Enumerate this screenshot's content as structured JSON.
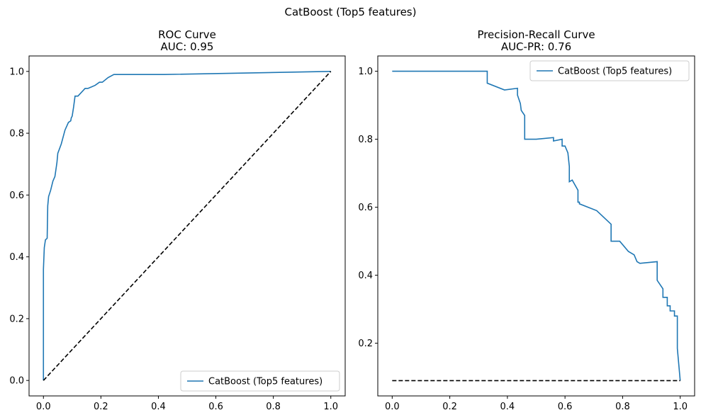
{
  "figure": {
    "suptitle": "CatBoost (Top5 features)"
  },
  "colors": {
    "series": "#1f77b4",
    "baseline": "#000000"
  },
  "chart_data": [
    {
      "type": "line",
      "title": "ROC Curve",
      "subtitle": "AUC: 0.95",
      "xlabel": "",
      "ylabel": "",
      "xlim": [
        -0.05,
        1.05
      ],
      "ylim": [
        -0.05,
        1.05
      ],
      "xticks": [
        0.0,
        0.2,
        0.4,
        0.6,
        0.8,
        1.0
      ],
      "xtick_labels": [
        "0.0",
        "0.2",
        "0.4",
        "0.6",
        "0.8",
        "1.0"
      ],
      "yticks": [
        0.0,
        0.2,
        0.4,
        0.6,
        0.8,
        1.0
      ],
      "ytick_labels": [
        "0.0",
        "0.2",
        "0.4",
        "0.6",
        "0.8",
        "1.0"
      ],
      "grid": false,
      "legend": {
        "position": "lower-right",
        "entries": [
          "CatBoost (Top5 features)"
        ]
      },
      "series": [
        {
          "name": "CatBoost (Top5 features)",
          "style": "solid",
          "x": [
            0.0,
            0.0,
            0.0,
            0.0,
            0.0,
            0.003,
            0.003,
            0.007,
            0.007,
            0.013,
            0.013,
            0.015,
            0.015,
            0.018,
            0.018,
            0.025,
            0.025,
            0.033,
            0.033,
            0.04,
            0.04,
            0.047,
            0.047,
            0.05,
            0.05,
            0.062,
            0.062,
            0.075,
            0.075,
            0.087,
            0.087,
            0.095,
            0.097,
            0.1,
            0.105,
            0.105,
            0.11,
            0.11,
            0.12,
            0.12,
            0.145,
            0.155,
            0.155,
            0.18,
            0.18,
            0.195,
            0.195,
            0.205,
            0.205,
            0.225,
            0.225,
            0.245,
            0.245,
            0.42,
            1.0
          ],
          "y": [
            0.0,
            0.33,
            0.33,
            0.36,
            0.36,
            0.43,
            0.43,
            0.455,
            0.455,
            0.46,
            0.46,
            0.565,
            0.565,
            0.595,
            0.595,
            0.615,
            0.615,
            0.645,
            0.645,
            0.66,
            0.66,
            0.705,
            0.705,
            0.735,
            0.735,
            0.765,
            0.765,
            0.81,
            0.81,
            0.835,
            0.835,
            0.84,
            0.85,
            0.855,
            0.885,
            0.885,
            0.92,
            0.92,
            0.92,
            0.92,
            0.945,
            0.945,
            0.945,
            0.955,
            0.955,
            0.965,
            0.965,
            0.965,
            0.965,
            0.98,
            0.98,
            0.99,
            0.99,
            0.99,
            1.0
          ]
        },
        {
          "name": "",
          "style": "dashed",
          "x": [
            0.0,
            1.0
          ],
          "y": [
            0.0,
            1.0
          ]
        }
      ]
    },
    {
      "type": "line",
      "title": "Precision-Recall Curve",
      "subtitle": "AUC-PR: 0.76",
      "xlabel": "",
      "ylabel": "",
      "xlim": [
        -0.05,
        1.05
      ],
      "ylim": [
        0.045,
        1.045
      ],
      "xticks": [
        0.0,
        0.2,
        0.4,
        0.6,
        0.8,
        1.0
      ],
      "xtick_labels": [
        "0.0",
        "0.2",
        "0.4",
        "0.6",
        "0.8",
        "1.0"
      ],
      "yticks": [
        0.2,
        0.4,
        0.6,
        0.8,
        1.0
      ],
      "ytick_labels": [
        "0.2",
        "0.4",
        "0.6",
        "0.8",
        "1.0"
      ],
      "grid": false,
      "legend": {
        "position": "upper-right",
        "entries": [
          "CatBoost (Top5 features)"
        ]
      },
      "series": [
        {
          "name": "CatBoost (Top5 features)",
          "style": "solid",
          "x": [
            0.0,
            0.33,
            0.33,
            0.39,
            0.435,
            0.435,
            0.445,
            0.448,
            0.448,
            0.46,
            0.46,
            0.5,
            0.56,
            0.56,
            0.59,
            0.59,
            0.6,
            0.61,
            0.615,
            0.615,
            0.625,
            0.645,
            0.645,
            0.65,
            0.65,
            0.71,
            0.71,
            0.76,
            0.76,
            0.79,
            0.79,
            0.82,
            0.84,
            0.85,
            0.86,
            0.92,
            0.92,
            0.94,
            0.94,
            0.955,
            0.955,
            0.965,
            0.965,
            0.98,
            0.98,
            0.99,
            0.99,
            1.0
          ],
          "y": [
            1.0,
            1.0,
            0.965,
            0.945,
            0.95,
            0.93,
            0.905,
            0.885,
            0.885,
            0.87,
            0.8,
            0.8,
            0.805,
            0.795,
            0.8,
            0.78,
            0.78,
            0.76,
            0.72,
            0.675,
            0.68,
            0.65,
            0.615,
            0.615,
            0.61,
            0.59,
            0.59,
            0.55,
            0.5,
            0.5,
            0.5,
            0.47,
            0.46,
            0.44,
            0.435,
            0.44,
            0.385,
            0.36,
            0.335,
            0.335,
            0.31,
            0.31,
            0.295,
            0.295,
            0.28,
            0.28,
            0.185,
            0.09
          ]
        },
        {
          "name": "",
          "style": "dashed",
          "x": [
            0.0,
            1.0
          ],
          "y": [
            0.09,
            0.09
          ]
        }
      ]
    }
  ]
}
